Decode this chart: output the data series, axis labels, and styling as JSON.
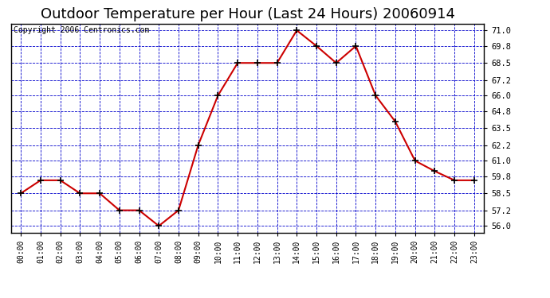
{
  "title": "Outdoor Temperature per Hour (Last 24 Hours) 20060914",
  "copyright_text": "Copyright 2006 Centronics.com",
  "line_color": "#cc0000",
  "bg_color": "#ffffff",
  "grid_color": "#0000cc",
  "hours": [
    0,
    1,
    2,
    3,
    4,
    5,
    6,
    7,
    8,
    9,
    10,
    11,
    12,
    13,
    14,
    15,
    16,
    17,
    18,
    19,
    20,
    21,
    22,
    23
  ],
  "temps": [
    58.5,
    59.5,
    59.5,
    58.5,
    58.5,
    57.2,
    57.2,
    56.0,
    57.2,
    62.2,
    66.0,
    68.5,
    68.5,
    68.5,
    71.0,
    69.8,
    68.5,
    69.8,
    66.0,
    64.0,
    61.0,
    60.2,
    59.5,
    59.5
  ],
  "ylim": [
    55.5,
    71.5
  ],
  "yticks": [
    56.0,
    57.2,
    58.5,
    59.8,
    61.0,
    62.2,
    63.5,
    64.8,
    66.0,
    67.2,
    68.5,
    69.8,
    71.0
  ],
  "title_fontsize": 13,
  "copyright_fontsize": 7
}
